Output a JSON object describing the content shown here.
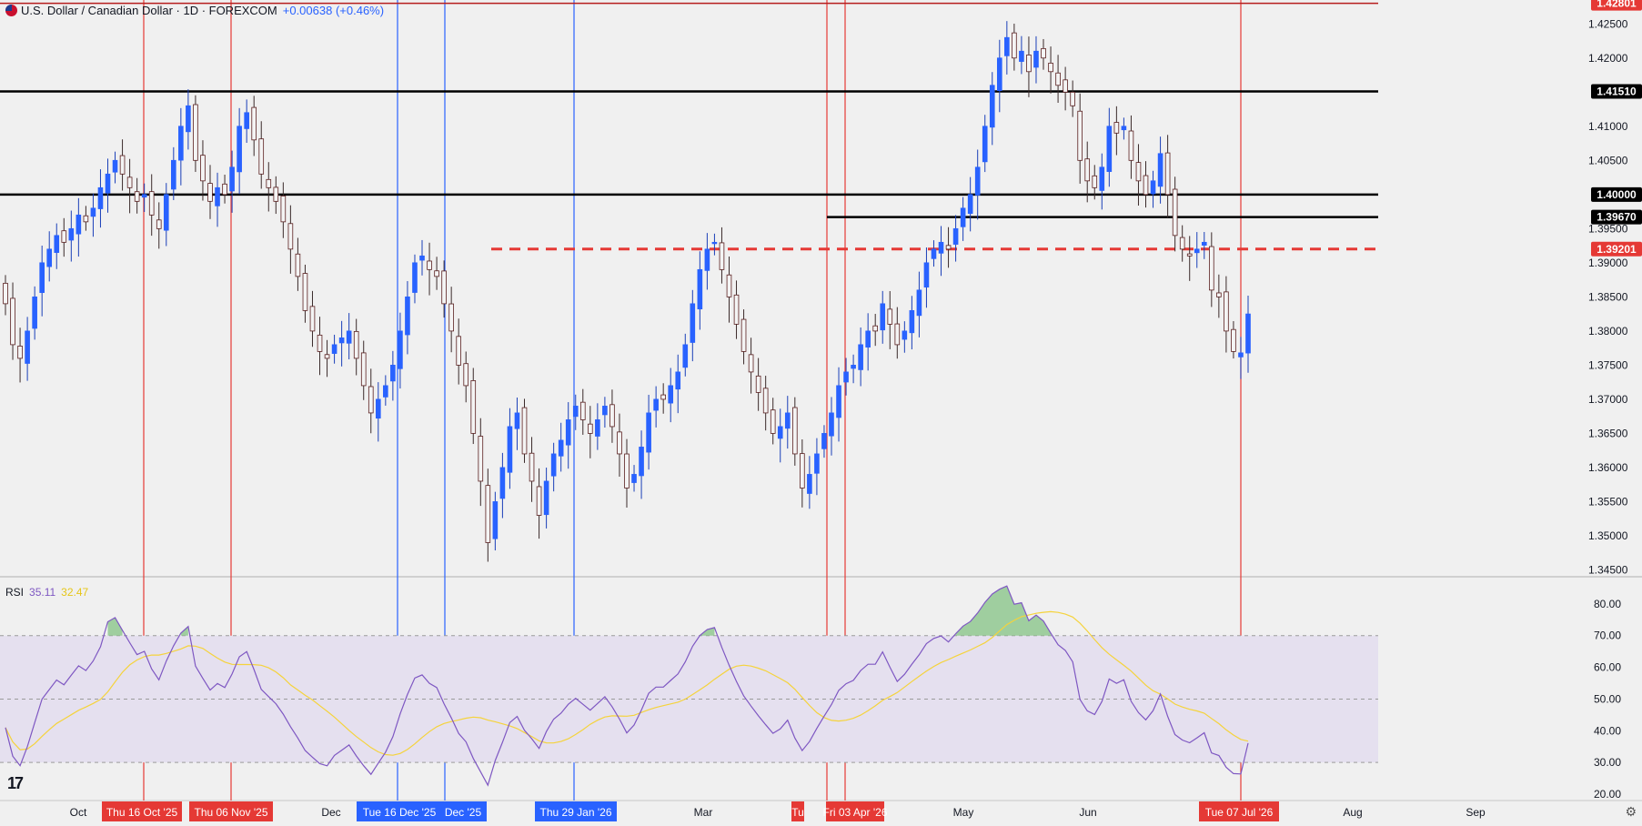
{
  "legend": {
    "symbol": "U.S. Dollar / Canadian Dollar · 1D · FOREXCOM",
    "change": "+0.00638 (+0.46%)",
    "flag_icon": "us-ca-flag-icon"
  },
  "rsi_legend": {
    "label": "RSI",
    "rsi_value": "35.11",
    "ma_value": "32.47"
  },
  "colors": {
    "up": "#2962ff",
    "down": "#e53935",
    "rsi_line": "#7e57c2",
    "rsi_ma": "#f5d33b",
    "h_lines": "#000000",
    "dashed": "#e53935"
  },
  "chart_data": {
    "type": "candlestick",
    "price_axis": {
      "ticks": [
        "1.42500",
        "1.42000",
        "1.41000",
        "1.40500",
        "1.39500",
        "1.39000",
        "1.38500",
        "1.38000",
        "1.37500",
        "1.37000",
        "1.36500",
        "1.36000",
        "1.35500",
        "1.35000",
        "1.34500"
      ],
      "range": [
        1.344,
        1.4285
      ]
    },
    "levels": [
      {
        "label": "1.42801",
        "value": 1.42801,
        "style": "solid-red",
        "badge": "red"
      },
      {
        "label": "1.41510",
        "value": 1.4151,
        "style": "solid-black",
        "badge": "black"
      },
      {
        "label": "1.40000",
        "value": 1.4,
        "style": "solid-black",
        "badge": "black"
      },
      {
        "label": "1.39670",
        "value": 1.3967,
        "style": "solid-black",
        "badge": "black"
      },
      {
        "label": "1.39201",
        "value": 1.39201,
        "style": "dashed-red",
        "badge": "red"
      }
    ],
    "rsi_axis": {
      "ticks": [
        "80.00",
        "70.00",
        "60.00",
        "50.00",
        "40.00",
        "30.00",
        "20.00"
      ],
      "overbought": 70,
      "oversold": 30,
      "range": [
        18,
        88
      ]
    },
    "time_axis": {
      "labels": [
        "Oct",
        "Dec",
        "Mar",
        "May",
        "Jun",
        "Aug",
        "Sep"
      ]
    },
    "vertical_markers": [
      {
        "label": "Thu 16 Oct '25",
        "color": "red"
      },
      {
        "label": "Thu 06 Nov '25",
        "color": "red"
      },
      {
        "label": "Tue 16 Dec '25",
        "color": "blue"
      },
      {
        "label": "Dec '25",
        "color": "blue"
      },
      {
        "label": "Thu 29 Jan '26",
        "color": "blue"
      },
      {
        "label": "Tu",
        "color": "red"
      },
      {
        "label": "Fri 03 Apr '26",
        "color": "red"
      },
      {
        "label": "Tue 07 Jul '26",
        "color": "red"
      }
    ],
    "closes": [
      1.384,
      1.378,
      1.376,
      1.38,
      1.385,
      1.39,
      1.392,
      1.394,
      1.393,
      1.395,
      1.397,
      1.396,
      1.398,
      1.401,
      1.403,
      1.405,
      1.403,
      1.401,
      1.399,
      1.4,
      1.397,
      1.395,
      1.4,
      1.405,
      1.41,
      1.413,
      1.405,
      1.402,
      1.399,
      1.401,
      1.4,
      1.404,
      1.41,
      1.412,
      1.408,
      1.403,
      1.401,
      1.399,
      1.396,
      1.392,
      1.388,
      1.383,
      1.38,
      1.377,
      1.376,
      1.378,
      1.379,
      1.38,
      1.376,
      1.372,
      1.368,
      1.37,
      1.372,
      1.375,
      1.38,
      1.385,
      1.39,
      1.391,
      1.389,
      1.388,
      1.384,
      1.38,
      1.375,
      1.372,
      1.365,
      1.358,
      1.349,
      1.355,
      1.36,
      1.366,
      1.368,
      1.362,
      1.358,
      1.353,
      1.358,
      1.362,
      1.364,
      1.367,
      1.369,
      1.367,
      1.365,
      1.367,
      1.369,
      1.366,
      1.362,
      1.357,
      1.359,
      1.363,
      1.368,
      1.37,
      1.37,
      1.372,
      1.374,
      1.378,
      1.384,
      1.389,
      1.392,
      1.393,
      1.389,
      1.385,
      1.381,
      1.377,
      1.374,
      1.371,
      1.368,
      1.365,
      1.366,
      1.368,
      1.362,
      1.357,
      1.359,
      1.362,
      1.365,
      1.368,
      1.372,
      1.374,
      1.375,
      1.378,
      1.38,
      1.38,
      1.384,
      1.381,
      1.378,
      1.38,
      1.383,
      1.386,
      1.39,
      1.392,
      1.393,
      1.392,
      1.395,
      1.398,
      1.4,
      1.404,
      1.41,
      1.416,
      1.42,
      1.423,
      1.42,
      1.421,
      1.418,
      1.421,
      1.42,
      1.418,
      1.416,
      1.415,
      1.413,
      1.405,
      1.402,
      1.401,
      1.404,
      1.41,
      1.409,
      1.41,
      1.405,
      1.402,
      1.4,
      1.402,
      1.406,
      1.4,
      1.394,
      1.392,
      1.391,
      1.392,
      1.393,
      1.386,
      1.385,
      1.38,
      1.377,
      1.3768,
      1.3825
    ]
  }
}
